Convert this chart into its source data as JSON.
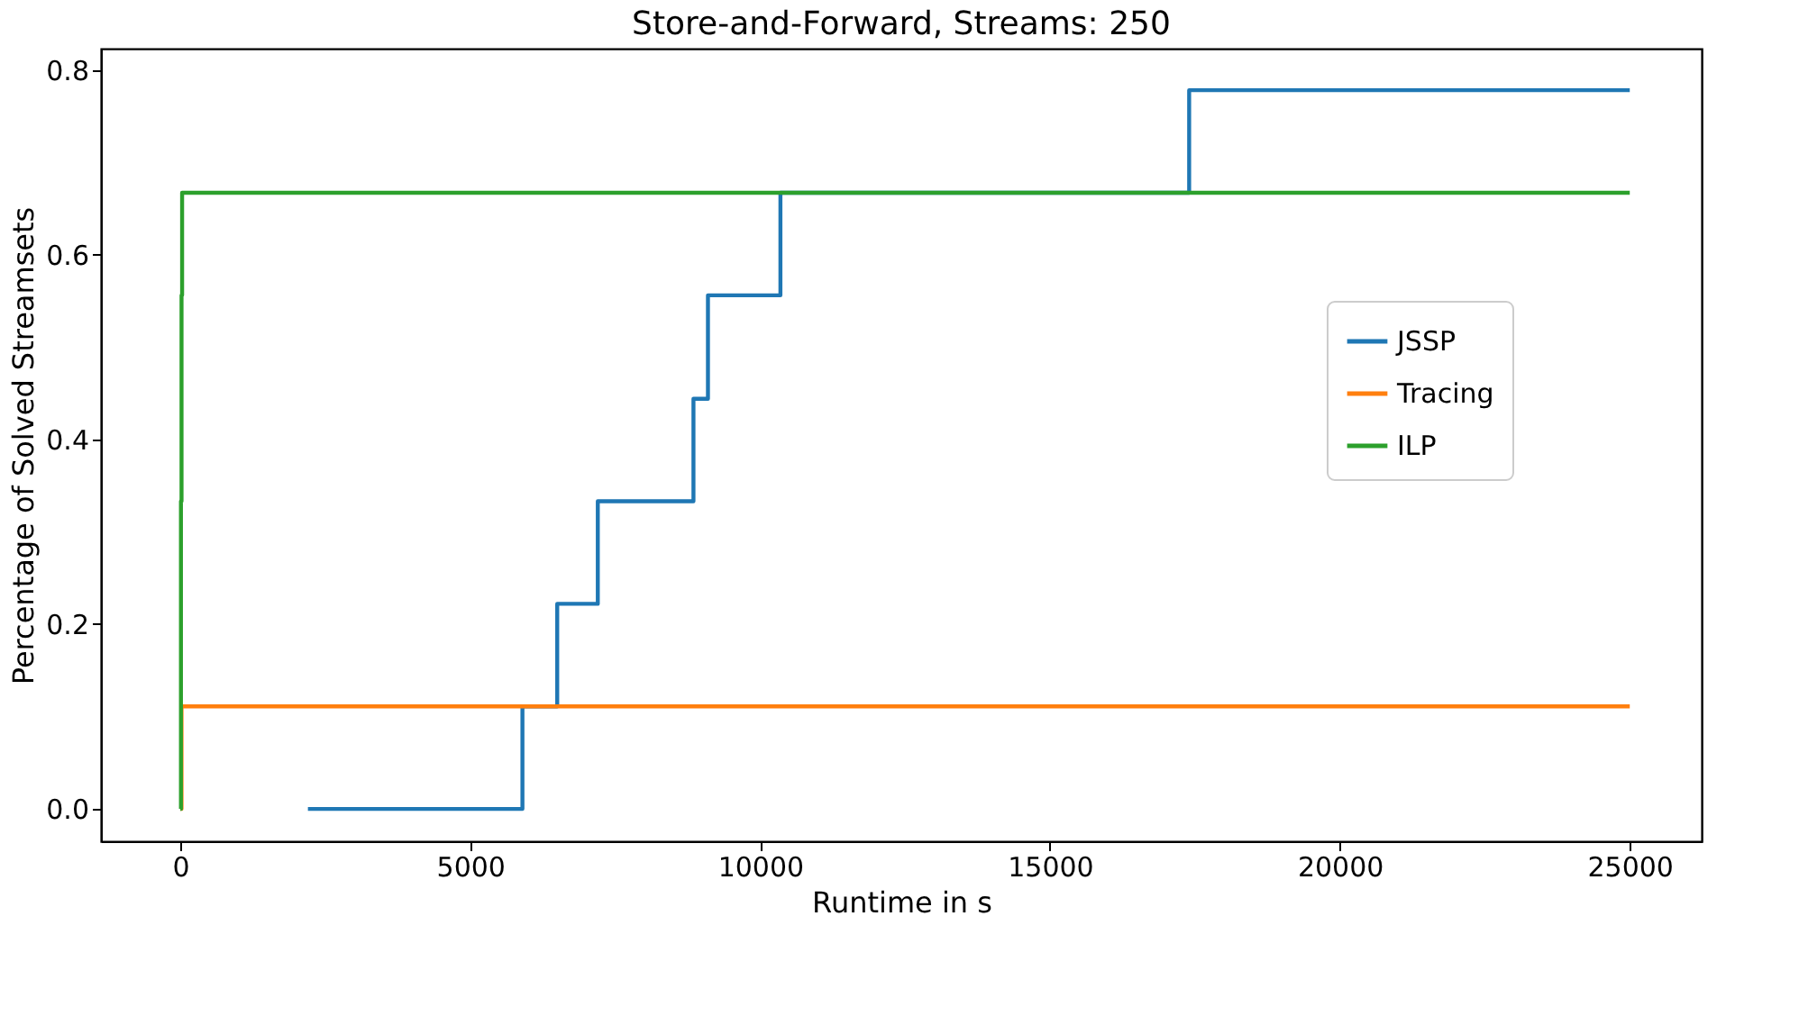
{
  "chart_data": {
    "type": "step",
    "title": "Store-and-Forward, Streams: 250",
    "xlabel": "Runtime in s",
    "ylabel": "Percentage of Solved Streamsets",
    "series": [
      {
        "name": "JSSP",
        "color": "#1f77b4",
        "x": [
          2200,
          5900,
          6500,
          7200,
          8850,
          9100,
          10350,
          17400,
          25000
        ],
        "values": [
          0,
          0.111,
          0.222,
          0.333,
          0.444,
          0.556,
          0.667,
          0.778,
          0.778
        ]
      },
      {
        "name": "Tracing",
        "color": "#ff7f0e",
        "x": [
          0,
          20,
          25000
        ],
        "values": [
          0,
          0.111,
          0.111
        ]
      },
      {
        "name": "ILP",
        "color": "#2ca02c",
        "x": [
          0,
          10,
          20,
          30,
          25000
        ],
        "values": [
          0,
          0.333,
          0.556,
          0.667,
          0.667
        ]
      }
    ],
    "xlim": [
      -1370,
      26240
    ],
    "ylim": [
      -0.035,
      0.823
    ],
    "xticks": [
      0,
      5000,
      10000,
      15000,
      20000,
      25000
    ],
    "yticks": [
      {
        "value": 0,
        "label": "0.0"
      },
      {
        "value": 0.2,
        "label": "0.2"
      },
      {
        "value": 0.4,
        "label": "0.4"
      },
      {
        "value": 0.6,
        "label": "0.6"
      },
      {
        "value": 0.8,
        "label": "0.8"
      }
    ],
    "grid": false,
    "legend": "right"
  }
}
